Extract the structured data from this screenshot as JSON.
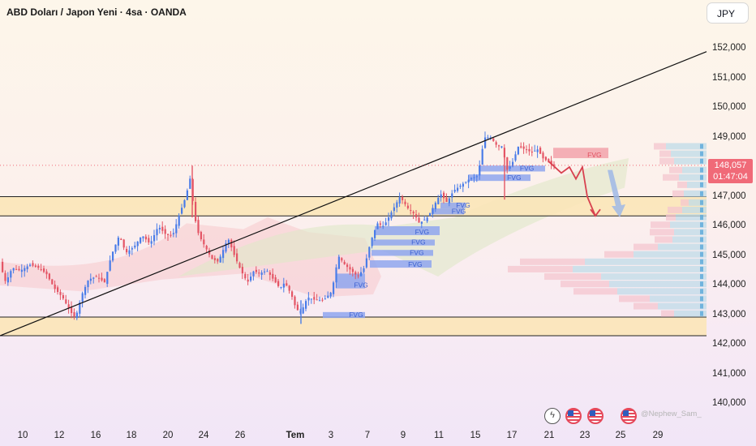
{
  "header": {
    "title": "ABD Doları / Japon Yeni · 4sa · OANDA",
    "currency": "JPY"
  },
  "price_tag": {
    "value": "148,057",
    "countdown": "01:47:04"
  },
  "watermark": "@Nephew_Sam_",
  "events": [
    "bolt-icon",
    "us-flag-icon",
    "us-flag-icon",
    "us-flag-icon"
  ],
  "colors": {
    "up": "#4a7ce8",
    "down": "#e45565",
    "fvg_blue": "#8fa6ee",
    "fvg_red": "#f2a3ab",
    "zone": "#fbe6b8",
    "price_tag": "#f06a78"
  },
  "chart_data": {
    "type": "candlestick",
    "title": "ABD Doları / Japon Yeni · 4sa · OANDA",
    "ylim": [
      139500,
      152700
    ],
    "y_ticks": [
      "152,000",
      "151,000",
      "150,000",
      "149,000",
      "148,000",
      "147,000",
      "146,000",
      "145,000",
      "144,000",
      "143,000",
      "142,000",
      "141,000",
      "140,000"
    ],
    "x_ticks": [
      "10",
      "12",
      "16",
      "18",
      "20",
      "24",
      "26",
      "Tem",
      "3",
      "7",
      "9",
      "11",
      "15",
      "17",
      "21",
      "23",
      "25",
      "29"
    ],
    "last_price": 148057,
    "price_path": [
      [
        0,
        144800
      ],
      [
        8,
        144100
      ],
      [
        16,
        144600
      ],
      [
        26,
        144500
      ],
      [
        38,
        144700
      ],
      [
        48,
        144600
      ],
      [
        58,
        144400
      ],
      [
        68,
        143900
      ],
      [
        78,
        143600
      ],
      [
        88,
        143100
      ],
      [
        94,
        142900
      ],
      [
        102,
        143700
      ],
      [
        110,
        144200
      ],
      [
        120,
        144300
      ],
      [
        130,
        144100
      ],
      [
        138,
        145000
      ],
      [
        148,
        145700
      ],
      [
        156,
        145100
      ],
      [
        166,
        145300
      ],
      [
        176,
        145700
      ],
      [
        186,
        145400
      ],
      [
        196,
        146000
      ],
      [
        206,
        145700
      ],
      [
        214,
        145700
      ],
      [
        222,
        146400
      ],
      [
        230,
        147000
      ],
      [
        236,
        147700
      ],
      [
        240,
        146400
      ],
      [
        246,
        145700
      ],
      [
        254,
        145300
      ],
      [
        262,
        144900
      ],
      [
        270,
        144800
      ],
      [
        276,
        145200
      ],
      [
        282,
        145600
      ],
      [
        290,
        145000
      ],
      [
        298,
        144500
      ],
      [
        306,
        144100
      ],
      [
        314,
        144500
      ],
      [
        320,
        144400
      ],
      [
        330,
        144500
      ],
      [
        338,
        144200
      ],
      [
        346,
        143900
      ],
      [
        352,
        144100
      ],
      [
        360,
        143700
      ],
      [
        366,
        143200
      ],
      [
        372,
        143100
      ],
      [
        380,
        143600
      ],
      [
        390,
        143500
      ],
      [
        400,
        143500
      ],
      [
        410,
        143800
      ],
      [
        418,
        145000
      ],
      [
        426,
        144700
      ],
      [
        434,
        144500
      ],
      [
        442,
        144300
      ],
      [
        450,
        144600
      ],
      [
        458,
        145500
      ],
      [
        466,
        146100
      ],
      [
        474,
        146000
      ],
      [
        484,
        146500
      ],
      [
        494,
        147000
      ],
      [
        504,
        146600
      ],
      [
        512,
        146400
      ],
      [
        518,
        146100
      ],
      [
        528,
        146300
      ],
      [
        536,
        146700
      ],
      [
        544,
        147100
      ],
      [
        552,
        146800
      ],
      [
        560,
        147200
      ],
      [
        570,
        147400
      ],
      [
        580,
        147600
      ],
      [
        590,
        147700
      ],
      [
        598,
        149000
      ],
      [
        606,
        149000
      ],
      [
        614,
        148700
      ],
      [
        620,
        148700
      ],
      [
        626,
        147900
      ],
      [
        632,
        148100
      ],
      [
        640,
        148700
      ],
      [
        648,
        148600
      ],
      [
        656,
        148500
      ],
      [
        664,
        148600
      ],
      [
        670,
        148300
      ],
      [
        676,
        148200
      ],
      [
        682,
        148057
      ]
    ],
    "trendline": [
      [
        0,
        142300
      ],
      [
        871,
        151900
      ]
    ],
    "zones": [
      {
        "from": 146350,
        "to": 147000
      },
      {
        "from": 142300,
        "to": 142930
      }
    ],
    "fvg": [
      {
        "label": "FVG",
        "x0": 682,
        "x1": 750,
        "low": 148300,
        "high": 148650,
        "color": "red"
      },
      {
        "label": "FVG",
        "x0": 590,
        "x1": 672,
        "low": 147850,
        "high": 148050,
        "color": "blue"
      },
      {
        "label": "FVG",
        "x0": 578,
        "x1": 654,
        "low": 147530,
        "high": 147750,
        "color": "blue"
      },
      {
        "label": "FVG",
        "x0": 543,
        "x1": 574,
        "low": 146600,
        "high": 146800,
        "color": "blue"
      },
      {
        "label": "FVG",
        "x0": 532,
        "x1": 572,
        "low": 146400,
        "high": 146600,
        "color": "blue"
      },
      {
        "label": "FVG",
        "x0": 462,
        "x1": 542,
        "low": 145700,
        "high": 146000,
        "color": "blue"
      },
      {
        "label": "FVG",
        "x0": 460,
        "x1": 536,
        "low": 145350,
        "high": 145550,
        "color": "blue"
      },
      {
        "label": "FVG",
        "x0": 458,
        "x1": 534,
        "low": 145000,
        "high": 145200,
        "color": "blue"
      },
      {
        "label": "FVG",
        "x0": 456,
        "x1": 532,
        "low": 144600,
        "high": 144850,
        "color": "blue"
      },
      {
        "label": "FVG",
        "x0": 414,
        "x1": 450,
        "low": 143900,
        "high": 144400,
        "color": "blue"
      },
      {
        "label": "FVG",
        "x0": 398,
        "x1": 450,
        "low": 142900,
        "high": 143100,
        "color": "blue"
      }
    ],
    "projection_red": [
      [
        676,
        148200
      ],
      [
        692,
        147800
      ],
      [
        702,
        148000
      ],
      [
        710,
        147600
      ],
      [
        718,
        148000
      ],
      [
        724,
        147000
      ],
      [
        734,
        146350
      ]
    ],
    "projection_blue": [
      [
        752,
        147900
      ],
      [
        764,
        146300
      ]
    ],
    "volume_profile": [
      {
        "price": 148700,
        "blue": 50,
        "pink": 15
      },
      {
        "price": 148450,
        "blue": 44,
        "pink": 14
      },
      {
        "price": 148200,
        "blue": 40,
        "pink": 18
      },
      {
        "price": 147900,
        "blue": 30,
        "pink": 16
      },
      {
        "price": 147650,
        "blue": 34,
        "pink": 20
      },
      {
        "price": 147400,
        "blue": 24,
        "pink": 12
      },
      {
        "price": 147100,
        "blue": 28,
        "pink": 14
      },
      {
        "price": 146800,
        "blue": 22,
        "pink": 10
      },
      {
        "price": 146550,
        "blue": 30,
        "pink": 18
      },
      {
        "price": 146300,
        "blue": 38,
        "pink": 12
      },
      {
        "price": 146050,
        "blue": 45,
        "pink": 24
      },
      {
        "price": 145800,
        "blue": 40,
        "pink": 30
      },
      {
        "price": 145550,
        "blue": 42,
        "pink": 22
      },
      {
        "price": 145300,
        "blue": 60,
        "pink": 30
      },
      {
        "price": 145050,
        "blue": 90,
        "pink": 36
      },
      {
        "price": 144800,
        "blue": 150,
        "pink": 80
      },
      {
        "price": 144550,
        "blue": 165,
        "pink": 80
      },
      {
        "price": 144300,
        "blue": 130,
        "pink": 70
      },
      {
        "price": 144050,
        "blue": 120,
        "pink": 60
      },
      {
        "price": 143800,
        "blue": 110,
        "pink": 54
      },
      {
        "price": 143550,
        "blue": 70,
        "pink": 38
      },
      {
        "price": 143300,
        "blue": 60,
        "pink": 30
      },
      {
        "price": 143050,
        "blue": 40,
        "pink": 16
      }
    ]
  }
}
